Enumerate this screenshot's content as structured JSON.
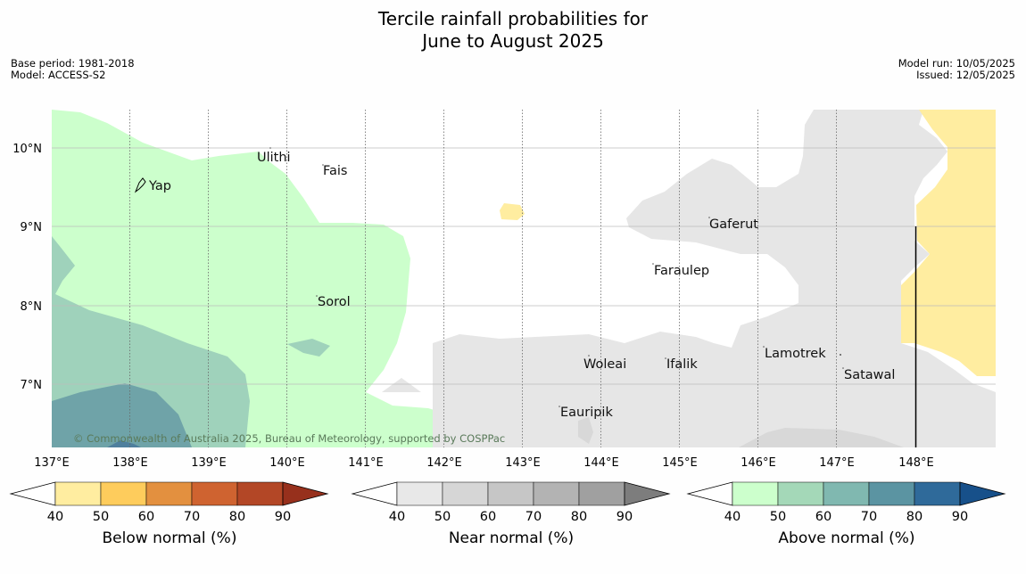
{
  "title": {
    "line1": "Tercile rainfall probabilities for",
    "line2": "June to August 2025"
  },
  "meta_left": {
    "base_period": "Base period: 1981-2018",
    "model": "Model: ACCESS-S2"
  },
  "meta_right": {
    "model_run": "Model run: 10/05/2025",
    "issued": "Issued: 12/05/2025"
  },
  "map": {
    "lat_labels": [
      "10°N",
      "9°N",
      "8°N",
      "7°N"
    ],
    "lon_labels": [
      "137°E",
      "138°E",
      "139°E",
      "140°E",
      "141°E",
      "142°E",
      "143°E",
      "144°E",
      "145°E",
      "146°E",
      "147°E",
      "148°E"
    ],
    "places": [
      "Yap",
      "Ulithi",
      "Fais",
      "Gaferut",
      "Faraulep",
      "Sorol",
      "Woleai",
      "Ifalik",
      "Lamotrek",
      "Satawal",
      "Eauripik"
    ],
    "copyright": "© Commonwealth of Australia 2025, Bureau of Meteorology, supported by COSPPac"
  },
  "colorbars": [
    {
      "name": "below",
      "label": "Below normal (%)",
      "ticks": [
        "40",
        "50",
        "60",
        "70",
        "80",
        "90"
      ],
      "colors": [
        "#ffeda0",
        "#fecc5c",
        "#e3903f",
        "#cf6330",
        "#b34726",
        "#97301c"
      ]
    },
    {
      "name": "near",
      "label": "Near normal (%)",
      "ticks": [
        "40",
        "50",
        "60",
        "70",
        "80",
        "90"
      ],
      "colors": [
        "#e8e8e8",
        "#d6d6d6",
        "#c6c6c6",
        "#b3b3b3",
        "#a0a0a0",
        "#7d7d7d"
      ]
    },
    {
      "name": "above",
      "label": "Above normal (%)",
      "ticks": [
        "40",
        "50",
        "60",
        "70",
        "80",
        "90"
      ],
      "colors": [
        "#ccffcc",
        "#a4d8b8",
        "#80b8b0",
        "#5b94a2",
        "#2f6a9a",
        "#17508a"
      ]
    }
  ]
}
